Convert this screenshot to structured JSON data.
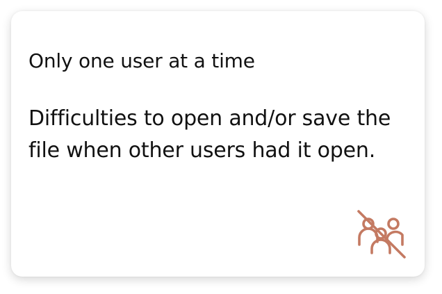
{
  "card": {
    "title": "Only one user at a time",
    "description": "Difficulties to open and/or save the file when other users had it open.",
    "icon": "users-slash-icon",
    "icon_color": "#c47a62"
  }
}
